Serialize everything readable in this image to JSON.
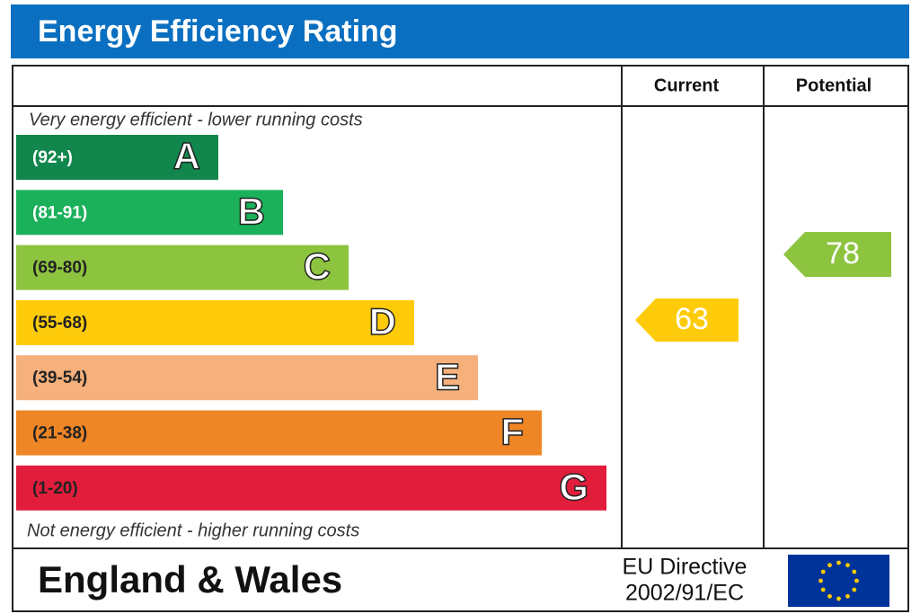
{
  "header": {
    "title": "Energy Efficiency Rating"
  },
  "columns": {
    "current": "Current",
    "potential": "Potential"
  },
  "top_note": "Very energy efficient - lower running costs",
  "bottom_note": "Not energy efficient - higher running costs",
  "bands": [
    {
      "range": "(92+)",
      "letter": "A",
      "color": "#12874d"
    },
    {
      "range": "(81-91)",
      "letter": "B",
      "color": "#1bb05a"
    },
    {
      "range": "(69-80)",
      "letter": "C",
      "color": "#8dc43f"
    },
    {
      "range": "(55-68)",
      "letter": "D",
      "color": "#fecb0a"
    },
    {
      "range": "(39-54)",
      "letter": "E",
      "color": "#f6b07c"
    },
    {
      "range": "(21-38)",
      "letter": "F",
      "color": "#ef8626"
    },
    {
      "range": "(1-20)",
      "letter": "G",
      "color": "#e21d3c"
    }
  ],
  "current": {
    "value": 63,
    "color": "#fecb0a"
  },
  "potential": {
    "value": 78,
    "color": "#8dc43f"
  },
  "footer": {
    "region": "England & Wales",
    "directive": [
      "EU Directive",
      "2002/91/EC"
    ]
  }
}
